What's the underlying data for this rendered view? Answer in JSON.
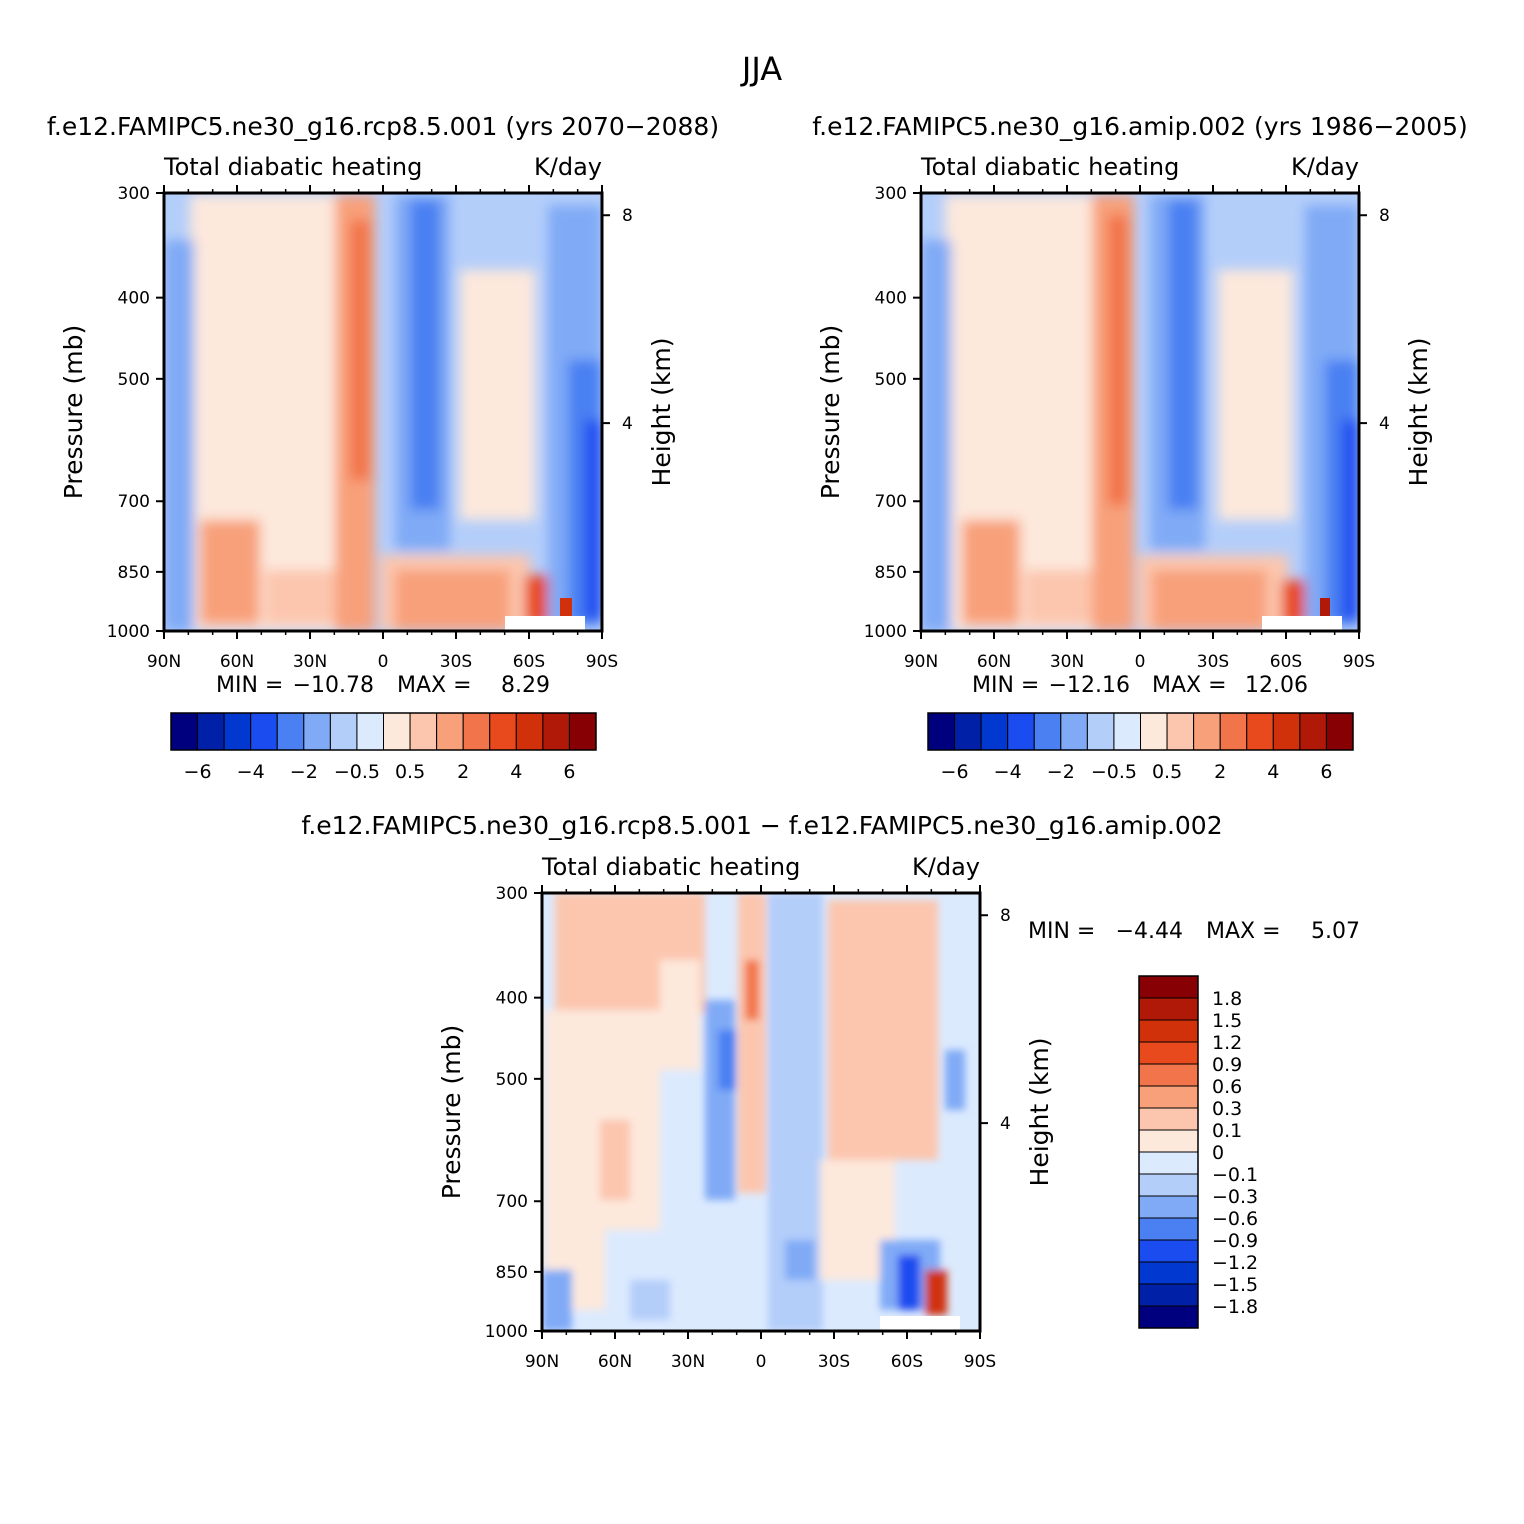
{
  "figure_title": "JJA",
  "colors": {
    "main_scale": [
      "#00007f",
      "#0020a8",
      "#0038d0",
      "#1a4cf0",
      "#4a80f2",
      "#80aaf6",
      "#b4cefa",
      "#dceafe",
      "#fde8dc",
      "#fcc6ae",
      "#f8a07a",
      "#f2744a",
      "#e84a1e",
      "#d0300a",
      "#b01808",
      "#860004"
    ],
    "diff_scale": [
      "#00007f",
      "#0020a8",
      "#0038d0",
      "#1a4cf0",
      "#4a80f2",
      "#80aaf6",
      "#b4cefa",
      "#dceafe",
      "#fde8dc",
      "#fcc6ae",
      "#f8a07a",
      "#f2744a",
      "#e84a1e",
      "#d0300a",
      "#b01808",
      "#860004"
    ]
  },
  "panels": [
    {
      "title": "f.e12.FAMIPC5.ne30_g16.rcp8.5.001 (yrs 2070-2088)",
      "variable": "Total diabatic heating",
      "units": "K/day",
      "ylabel": "Pressure (mb)",
      "ylabel_right": "Height (km)",
      "min_label": "MIN =",
      "min_value": "-10.78",
      "max_label": "MAX =",
      "max_value": "8.29"
    },
    {
      "title": "f.e12.FAMIPC5.ne30_g16.amip.002 (yrs 1986-2005)",
      "variable": "Total diabatic heating",
      "units": "K/day",
      "ylabel": "Pressure (mb)",
      "ylabel_right": "Height (km)",
      "min_label": "MIN =",
      "min_value": "-12.16",
      "max_label": "MAX =",
      "max_value": "12.06"
    },
    {
      "title": "f.e12.FAMIPC5.ne30_g16.rcp8.5.001 - f.e12.FAMIPC5.ne30_g16.amip.002",
      "variable": "Total diabatic heating",
      "units": "K/day",
      "ylabel": "Pressure (mb)",
      "ylabel_right": "Height (km)",
      "min_label": "MIN =",
      "min_value": "-4.44",
      "max_label": "MAX =",
      "max_value": "5.07"
    }
  ],
  "axes": {
    "x_ticks": [
      "90N",
      "60N",
      "30N",
      "0",
      "30S",
      "60S",
      "90S"
    ],
    "pressure_ticks": [
      "300",
      "400",
      "500",
      "700",
      "850",
      "1000"
    ],
    "height_ticks": [
      "8",
      "4"
    ]
  },
  "main_colorbar_labels": [
    "-6",
    "-4",
    "-2",
    "-0.5",
    "0.5",
    "2",
    "4",
    "6"
  ],
  "diff_colorbar_labels": [
    "1.8",
    "1.5",
    "1.2",
    "0.9",
    "0.6",
    "0.3",
    "0.1",
    "0",
    "-0.1",
    "-0.3",
    "-0.6",
    "-0.9",
    "-1.2",
    "-1.5",
    "-1.8"
  ],
  "chart_data": [
    {
      "type": "heatmap",
      "title": "f.e12.FAMIPC5.ne30_g16.rcp8.5.001 (yrs 2070-2088)",
      "x": [
        90,
        60,
        30,
        0,
        -30,
        -60,
        -90
      ],
      "x_tick_labels": [
        "90N",
        "60N",
        "30N",
        "0",
        "30S",
        "60S",
        "90S"
      ],
      "y_pressure_mb": [
        300,
        400,
        500,
        700,
        850,
        1000
      ],
      "y_height_km": [
        8,
        4
      ],
      "xlim": [
        90,
        -90
      ],
      "ylim": [
        1000,
        300
      ],
      "ylabel": "Pressure (mb)",
      "ylabel_right": "Height (km)",
      "units": "K/day",
      "color_levels": [
        -7,
        -6,
        -5,
        -4,
        -3,
        -2,
        -1,
        -0.5,
        0,
        0.5,
        1,
        2,
        3,
        4,
        5,
        6,
        7
      ],
      "colorbar_tick_labels": [
        "-6",
        "-4",
        "-2",
        "-0.5",
        "0.5",
        "2",
        "4",
        "6"
      ],
      "min": -10.78,
      "max": 8.29
    },
    {
      "type": "heatmap",
      "title": "f.e12.FAMIPC5.ne30_g16.amip.002 (yrs 1986-2005)",
      "x": [
        90,
        60,
        30,
        0,
        -30,
        -60,
        -90
      ],
      "x_tick_labels": [
        "90N",
        "60N",
        "30N",
        "0",
        "30S",
        "60S",
        "90S"
      ],
      "y_pressure_mb": [
        300,
        400,
        500,
        700,
        850,
        1000
      ],
      "y_height_km": [
        8,
        4
      ],
      "xlim": [
        90,
        -90
      ],
      "ylim": [
        1000,
        300
      ],
      "ylabel": "Pressure (mb)",
      "ylabel_right": "Height (km)",
      "units": "K/day",
      "color_levels": [
        -7,
        -6,
        -5,
        -4,
        -3,
        -2,
        -1,
        -0.5,
        0,
        0.5,
        1,
        2,
        3,
        4,
        5,
        6,
        7
      ],
      "colorbar_tick_labels": [
        "-6",
        "-4",
        "-2",
        "-0.5",
        "0.5",
        "2",
        "4",
        "6"
      ],
      "min": -12.16,
      "max": 12.06
    },
    {
      "type": "heatmap",
      "title": "f.e12.FAMIPC5.ne30_g16.rcp8.5.001 - f.e12.FAMIPC5.ne30_g16.amip.002",
      "x": [
        90,
        60,
        30,
        0,
        -30,
        -60,
        -90
      ],
      "x_tick_labels": [
        "90N",
        "60N",
        "30N",
        "0",
        "30S",
        "60S",
        "90S"
      ],
      "y_pressure_mb": [
        300,
        400,
        500,
        700,
        850,
        1000
      ],
      "y_height_km": [
        8,
        4
      ],
      "xlim": [
        90,
        -90
      ],
      "ylim": [
        1000,
        300
      ],
      "ylabel": "Pressure (mb)",
      "ylabel_right": "Height (km)",
      "units": "K/day",
      "color_levels": [
        -1.8,
        -1.5,
        -1.2,
        -0.9,
        -0.6,
        -0.3,
        -0.1,
        0,
        0.1,
        0.3,
        0.6,
        0.9,
        1.2,
        1.5,
        1.8
      ],
      "colorbar_tick_labels": [
        "1.8",
        "1.5",
        "1.2",
        "0.9",
        "0.6",
        "0.3",
        "0.1",
        "0",
        "-0.1",
        "-0.3",
        "-0.6",
        "-0.9",
        "-1.2",
        "-1.5",
        "-1.8"
      ],
      "min": -4.44,
      "max": 5.07
    }
  ]
}
